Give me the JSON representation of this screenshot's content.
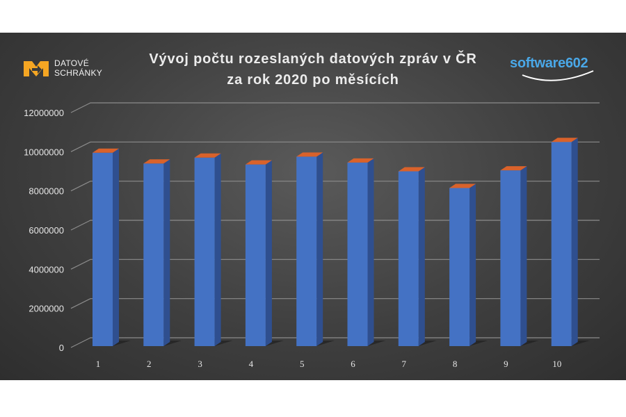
{
  "logo_left": {
    "line1": "DATOVÉ",
    "line2": "SCHRÁNKY",
    "mark_color": "#f5a623"
  },
  "logo_right": {
    "text": "software",
    "number": "602",
    "color": "#4aa8e8"
  },
  "chart_data": {
    "type": "bar",
    "title_line1": "Vývoj počtu rozeslaných datových zpráv v ČR",
    "title_line2": "za rok 2020 po měsících",
    "categories": [
      "1",
      "2",
      "3",
      "4",
      "5",
      "6",
      "7",
      "8",
      "9",
      "10"
    ],
    "values": [
      9950000,
      9400000,
      9700000,
      9350000,
      9750000,
      9450000,
      9000000,
      8150000,
      9050000,
      10500000
    ],
    "ylim": [
      0,
      12000000
    ],
    "yticks": [
      "0",
      "2000000",
      "4000000",
      "6000000",
      "8000000",
      "10000000",
      "12000000"
    ],
    "grid": true,
    "bar_color": "#4472c4",
    "bar_top_color": "#d9622b",
    "bar_side_color": "#2f4f8f"
  }
}
